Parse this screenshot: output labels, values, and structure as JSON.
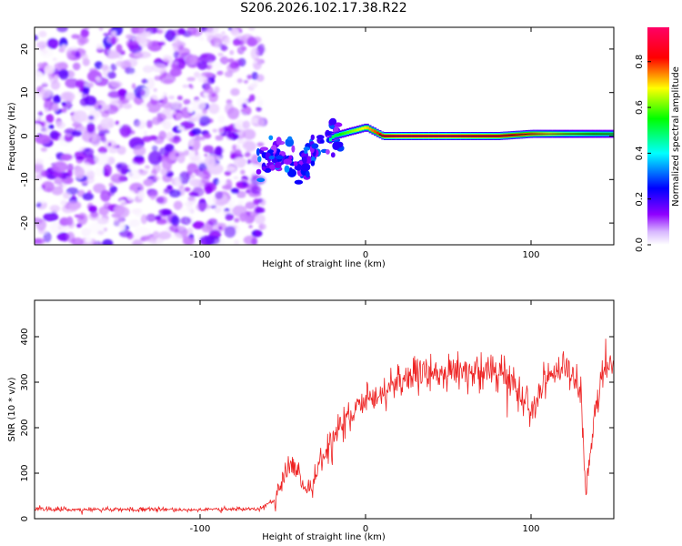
{
  "figure": {
    "title": "S206.2026.102.17.38.R22"
  },
  "chart_data": [
    {
      "type": "heatmap",
      "title": "S206.2026.102.17.38.R22",
      "xlabel": "Height of straight line (km)",
      "ylabel": "Frequency (Hz)",
      "xlim": [
        -200,
        150
      ],
      "ylim": [
        -25,
        25
      ],
      "xticks": [
        -100,
        0,
        100
      ],
      "yticks": [
        -20,
        -10,
        0,
        10,
        20
      ],
      "xtick_labels": [
        "-100",
        "0",
        "100"
      ],
      "ytick_labels": [
        "-20",
        "-10",
        "0",
        "10",
        "20"
      ],
      "colorbar": {
        "label": "Normalized spectral amplitude",
        "range": [
          0,
          0.95
        ],
        "ticks": [
          0.0,
          0.2,
          0.4,
          0.6,
          0.8
        ],
        "tick_labels": [
          "0.0",
          "0.2",
          "0.4",
          "0.6",
          "0.8"
        ],
        "colors": [
          "#ffffff",
          "#8f00ff",
          "#0000ff",
          "#00ffff",
          "#00ff00",
          "#ffff00",
          "#ff0000",
          "#ff0080"
        ]
      },
      "noise_region": {
        "x_range": [
          -200,
          -62
        ],
        "y_range": [
          -25,
          25
        ]
      },
      "ridge": {
        "x": [
          -60,
          -50,
          -40,
          -30,
          -25,
          -20,
          -10,
          0,
          10,
          20,
          50,
          80,
          100,
          120,
          150
        ],
        "frequency": [
          -5,
          -3,
          -8,
          -2,
          -2,
          0,
          1,
          2,
          0,
          0,
          0,
          0,
          0.5,
          0.5,
          0.5
        ],
        "amplitude": [
          0.3,
          0.3,
          0.35,
          0.3,
          0.45,
          0.5,
          0.6,
          0.7,
          0.85,
          0.9,
          0.9,
          0.85,
          0.75,
          0.6,
          0.5
        ]
      }
    },
    {
      "type": "line",
      "xlabel": "Height of straight line (km)",
      "ylabel": "SNR (10 * v/v)",
      "xlim": [
        -200,
        150
      ],
      "ylim": [
        0,
        480
      ],
      "xticks": [
        -100,
        0,
        100
      ],
      "yticks": [
        0,
        100,
        200,
        300,
        400
      ],
      "xtick_labels": [
        "-100",
        "0",
        "100"
      ],
      "ytick_labels": [
        "0",
        "100",
        "200",
        "300",
        "400"
      ],
      "series": [
        {
          "name": "SNR",
          "color": "#ee2222",
          "x": [
            -200,
            -90,
            -65,
            -55,
            -50,
            -45,
            -40,
            -35,
            -25,
            -20,
            -10,
            0,
            10,
            20,
            40,
            60,
            80,
            90,
            100,
            110,
            120,
            130,
            133,
            140,
            145,
            150
          ],
          "values": [
            20,
            20,
            22,
            40,
            85,
            120,
            90,
            60,
            140,
            180,
            220,
            250,
            280,
            305,
            320,
            325,
            320,
            300,
            240,
            320,
            330,
            290,
            50,
            260,
            340,
            330
          ]
        }
      ]
    }
  ]
}
